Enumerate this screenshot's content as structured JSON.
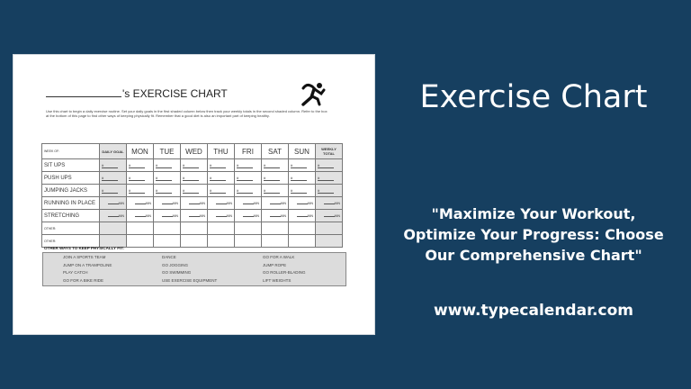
{
  "colors": {
    "background": "#163f60",
    "paper": "#ffffff",
    "shaded": "#e2e2e2",
    "text": "#ffffff"
  },
  "document": {
    "title_suffix": "'s EXERCISE CHART",
    "icon": "runner-icon",
    "intro": "Use this chart to begin a daily exercise routine. Set your daily goals in the first shaded column below then track your weekly totals in the second shaded column. Refer to the box at the bottom of this page to find other ways of keeping physically fit. Remember that a good diet is also an important part of keeping healthy.",
    "table": {
      "week_of": "WEEK OF:",
      "daily_goal": "DAILY GOAL",
      "days": [
        "MON",
        "TUE",
        "WED",
        "THU",
        "FRI",
        "SAT",
        "SUN"
      ],
      "weekly_total": "WEEKLY TOTAL",
      "rows": [
        "SIT UPS",
        "PUSH UPS",
        "JUMPING JACKS",
        "RUNNING IN PLACE",
        "STRETCHING",
        "OTHER:",
        "OTHER:"
      ],
      "count_mark": "#",
      "min_mark": "MIN"
    },
    "other_ways_title": "OTHER WAYS TO KEEP PHYSICALLY FIT:",
    "other_ways": [
      "JOIN A SPORTS TEAM",
      "DANCE",
      "GO FOR A WALK",
      "JUMP ON A TRAMPOLINE",
      "GO JOGGING",
      "JUMP ROPE",
      "PLAY CATCH",
      "GO SWIMMING",
      "GO ROLLER-BLADING",
      "GO FOR A BIKE RIDE",
      "USE EXERCISE EQUIPMENT",
      "LIFT WEIGHTS"
    ]
  },
  "banner": {
    "title": "Exercise Chart",
    "quote": "\"Maximize Your Workout, Optimize Your Progress: Choose Our Comprehensive Chart\"",
    "url": "www.typecalendar.com"
  }
}
